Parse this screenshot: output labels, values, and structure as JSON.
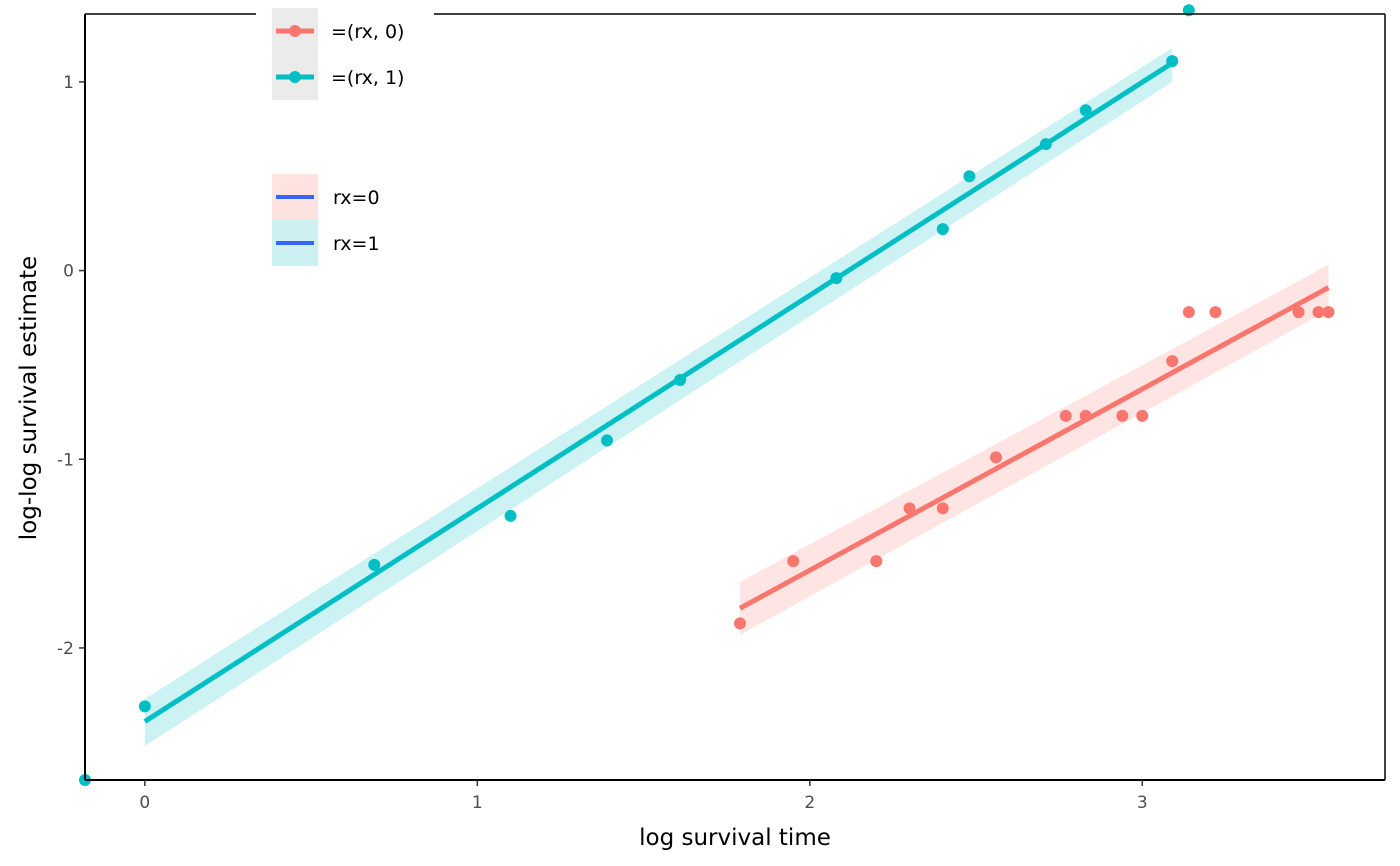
{
  "chart_data": {
    "type": "scatter",
    "title": "",
    "xlabel": "log survival time",
    "ylabel": "log-log survival estimate",
    "xlim": [
      -0.18,
      3.73
    ],
    "ylim": [
      -2.7,
      1.36
    ],
    "x_ticks": [
      0,
      1,
      2,
      3
    ],
    "x_tick_labels": [
      "0",
      "1",
      "2",
      "3"
    ],
    "y_ticks": [
      -2,
      -1,
      0,
      1
    ],
    "y_tick_labels": [
      "-2",
      "-1",
      "0",
      "1"
    ],
    "grid": false,
    "legend_position": "top-left",
    "colors": {
      "rx0": "#F8766D",
      "rx1": "#00BFC4",
      "fit_legend": "#3366FF",
      "axis": "#000000"
    },
    "series": [
      {
        "name": "=(rx, 0)",
        "color": "#F8766D",
        "points": [
          [
            1.79,
            -1.87
          ],
          [
            1.95,
            -1.54
          ],
          [
            2.2,
            -1.54
          ],
          [
            2.3,
            -1.26
          ],
          [
            2.4,
            -1.26
          ],
          [
            2.56,
            -0.99
          ],
          [
            2.77,
            -0.77
          ],
          [
            2.83,
            -0.77
          ],
          [
            2.94,
            -0.77
          ],
          [
            3.0,
            -0.77
          ],
          [
            3.09,
            -0.48
          ],
          [
            3.14,
            -0.22
          ],
          [
            3.22,
            -0.22
          ],
          [
            3.47,
            -0.22
          ],
          [
            3.53,
            -0.22
          ],
          [
            3.56,
            -0.22
          ]
        ],
        "fit": {
          "x": [
            1.79,
            3.56
          ],
          "y": [
            -1.79,
            -0.09
          ]
        },
        "band": {
          "x": [
            1.79,
            3.56
          ],
          "upper": [
            -1.65,
            0.03
          ],
          "lower": [
            -1.93,
            -0.21
          ]
        }
      },
      {
        "name": "=(rx, 1)",
        "color": "#00BFC4",
        "points": [
          [
            -0.18,
            -2.7
          ],
          [
            0.0,
            -2.31
          ],
          [
            0.69,
            -1.56
          ],
          [
            1.1,
            -1.3
          ],
          [
            1.39,
            -0.9
          ],
          [
            1.61,
            -0.58
          ],
          [
            2.08,
            -0.04
          ],
          [
            2.4,
            0.22
          ],
          [
            2.48,
            0.5
          ],
          [
            2.71,
            0.67
          ],
          [
            2.83,
            0.85
          ],
          [
            3.09,
            1.11
          ],
          [
            3.14,
            1.38
          ]
        ],
        "fit": {
          "x": [
            0.0,
            3.09
          ],
          "y": [
            -2.39,
            1.1
          ]
        },
        "band": {
          "x": [
            0.0,
            3.09
          ],
          "upper": [
            -2.27,
            1.18
          ],
          "lower": [
            -2.52,
            1.0
          ]
        }
      }
    ],
    "legends": [
      {
        "items": [
          {
            "label": "=(rx, 0)",
            "color": "#F8766D"
          },
          {
            "label": "=(rx, 1)",
            "color": "#00BFC4"
          }
        ]
      },
      {
        "items": [
          {
            "label": "rx=0",
            "fill": "#FFE3E1",
            "line": "#3366FF"
          },
          {
            "label": "rx=1",
            "fill": "#CDF0F2",
            "line": "#3366FF"
          }
        ]
      }
    ]
  }
}
